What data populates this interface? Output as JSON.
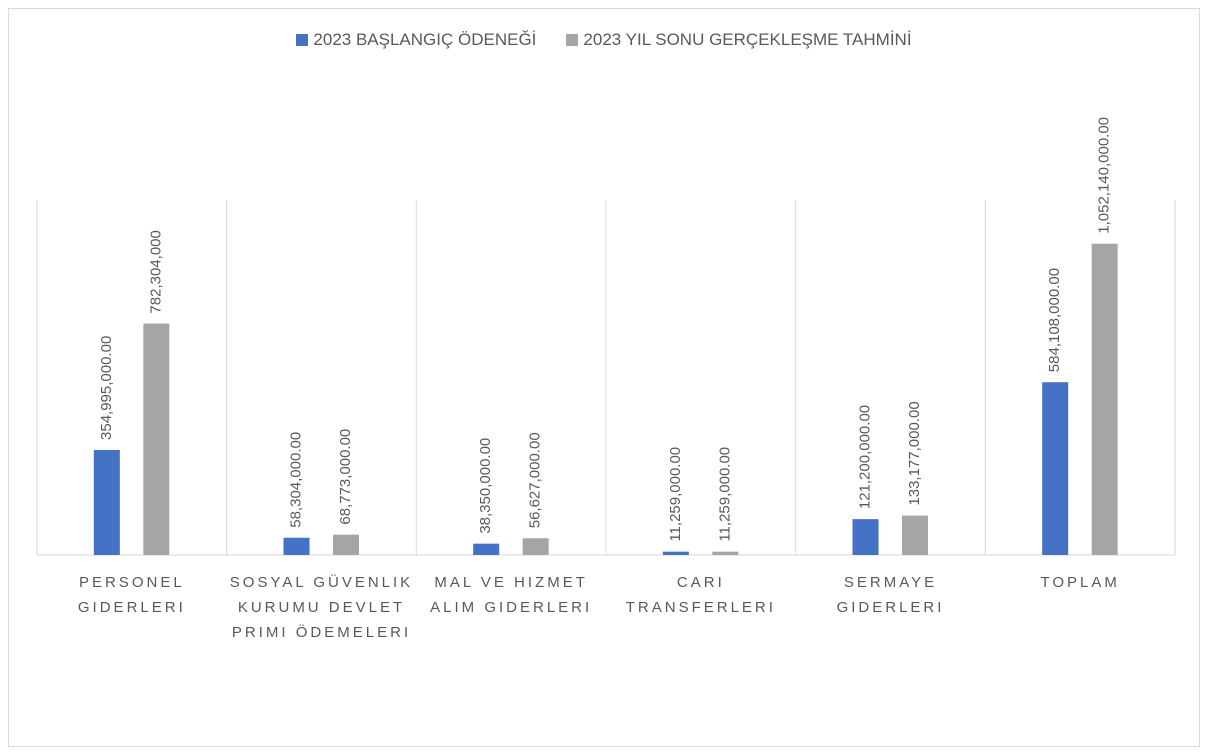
{
  "chart_data": {
    "type": "bar",
    "categories": [
      "PERSONEL GIDERLERI",
      "SOSYAL GÜVENLIK KURUMU DEVLET PRIMI ÖDEMELERI",
      "MAL VE HIZMET ALIM GIDERLERI",
      "CARI TRANSFERLERI",
      "SERMAYE GIDERLERI",
      "TOPLAM"
    ],
    "series": [
      {
        "name": "2023 BAŞLANGIÇ ÖDENEĞİ",
        "color": "#4472c4",
        "values": [
          354995000,
          58304000,
          38350000,
          11259000,
          121200000,
          584108000
        ],
        "value_labels": [
          "354,995,000.00",
          "58,304,000.00",
          "38,350,000.00",
          "11,259,000.00",
          "121,200,000.00",
          "584,108,000.00"
        ]
      },
      {
        "name": "2023 YIL SONU GERÇEKLEŞME TAHMİNİ",
        "color": "#a5a5a5",
        "values": [
          782304000,
          68773000,
          56627000,
          11259000,
          133177000,
          1052140000
        ],
        "value_labels": [
          "782,304,000",
          "68,773,000.00",
          "56,627,000.00",
          "11,259,000.00",
          "133,177,000.00",
          "1,052,140,000.00"
        ]
      }
    ],
    "ylim": [
      0,
      1200000000
    ]
  }
}
